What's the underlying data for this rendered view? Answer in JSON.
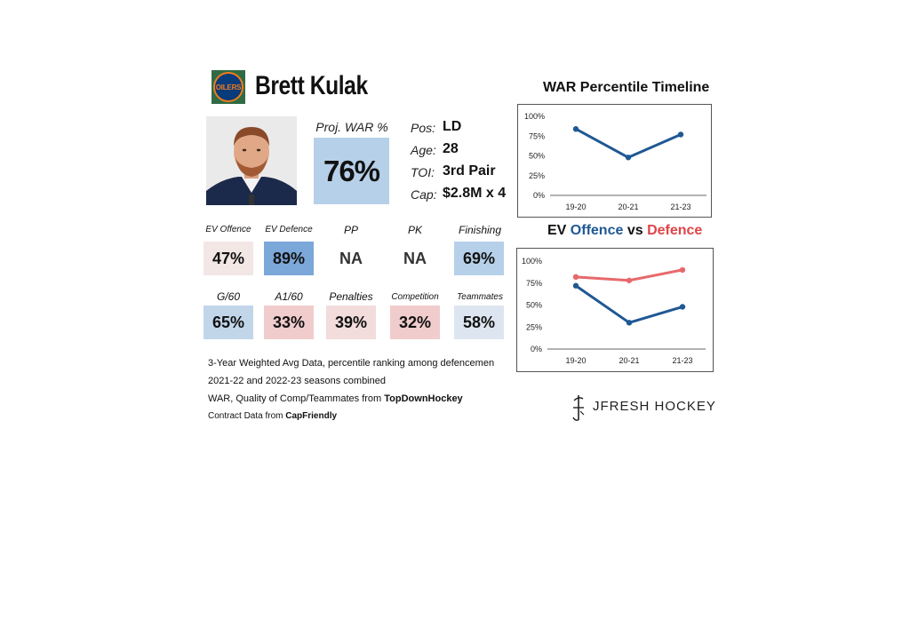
{
  "header": {
    "player_name": "Brett Kulak",
    "team_logo_text": "OILERS"
  },
  "projection": {
    "label": "Proj. WAR %",
    "value": "76%",
    "color": "#b6d0e9"
  },
  "info": [
    {
      "key": "Pos:",
      "value": "LD"
    },
    {
      "key": "Age:",
      "value": "28"
    },
    {
      "key": "TOI:",
      "value": "3rd Pair"
    },
    {
      "key": "Cap:",
      "value": "$2.8M x 4"
    }
  ],
  "stats_row1": [
    {
      "label": "EV Offence",
      "value": "47%",
      "color": "#f2e7e5"
    },
    {
      "label": "EV Defence",
      "value": "89%",
      "color": "#7ba7d9"
    },
    {
      "label": "PP",
      "value": "NA",
      "color": "#ffffff"
    },
    {
      "label": "PK",
      "value": "NA",
      "color": "#ffffff"
    },
    {
      "label": "Finishing",
      "value": "69%",
      "color": "#b6d0e9"
    }
  ],
  "stats_row2": [
    {
      "label": "G/60",
      "value": "65%",
      "color": "#c2d6ea"
    },
    {
      "label": "A1/60",
      "value": "33%",
      "color": "#f1cccc"
    },
    {
      "label": "Penalties",
      "value": "39%",
      "color": "#f3dcdc"
    },
    {
      "label": "Competition",
      "value": "32%",
      "color": "#f1cccc"
    },
    {
      "label": "Teammates",
      "value": "58%",
      "color": "#dde6f0"
    }
  ],
  "notes": {
    "line1": "3-Year Weighted Avg Data, percentile ranking among defencemen",
    "line2": "2021-22 and 2022-23 seasons combined",
    "line3_prefix": "WAR, Quality of Comp/Teammates from ",
    "line3_source": "TopDownHockey",
    "line4_prefix": "Contract Data from ",
    "line4_source": "CapFriendly"
  },
  "brand": {
    "name": "JFRESH HOCKEY"
  },
  "chart_data": [
    {
      "type": "line",
      "title": "WAR Percentile Timeline",
      "categories": [
        "19-20",
        "20-21",
        "21-23"
      ],
      "series": [
        {
          "values": [
            84,
            48,
            77
          ],
          "color": "#1f5894"
        }
      ],
      "ylim": [
        0,
        100
      ],
      "yticks": [
        "0%",
        "25%",
        "50%",
        "75%",
        "100%"
      ],
      "grid": false
    },
    {
      "type": "line",
      "title_parts": {
        "prefix": "EV ",
        "offence": "Offence",
        "mid": " vs ",
        "defence": "Defence"
      },
      "categories": [
        "19-20",
        "20-21",
        "21-23"
      ],
      "series": [
        {
          "name": "Offence",
          "values": [
            72,
            30,
            48
          ],
          "color": "#1f5894"
        },
        {
          "name": "Defence",
          "values": [
            82,
            78,
            90
          ],
          "color": "#e8696b"
        }
      ],
      "ylim": [
        0,
        100
      ],
      "yticks": [
        "0%",
        "25%",
        "50%",
        "75%",
        "100%"
      ],
      "grid": false
    }
  ]
}
